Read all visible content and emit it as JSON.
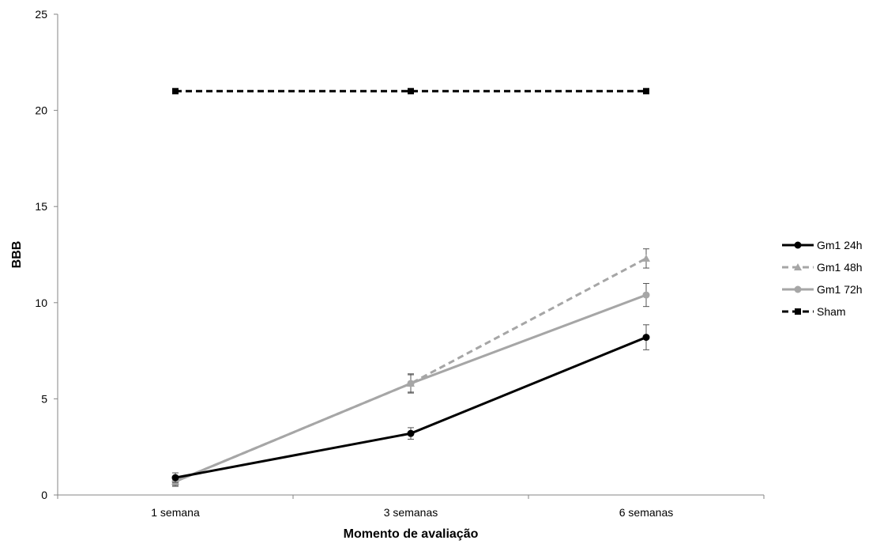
{
  "chart_data": {
    "type": "line",
    "title": "",
    "xlabel": "Momento de avaliação",
    "ylabel": "BBB",
    "categories": [
      "1 semana",
      "3 semanas",
      "6 semanas"
    ],
    "ylim": [
      0,
      25
    ],
    "yticks": [
      0,
      5,
      10,
      15,
      20,
      25
    ],
    "grid": false,
    "legend_position": "right",
    "series": [
      {
        "name": "Gm1 24h",
        "values": [
          0.9,
          3.2,
          8.2
        ],
        "error": [
          0.25,
          0.3,
          0.65
        ],
        "color": "#000000",
        "dashed": false,
        "marker": "circle"
      },
      {
        "name": "Gm1 48h",
        "values": [
          0.7,
          5.8,
          12.3
        ],
        "error": [
          0.25,
          0.5,
          0.5
        ],
        "color": "#a6a6a6",
        "dashed": true,
        "marker": "triangle"
      },
      {
        "name": "Gm1 72h",
        "values": [
          0.7,
          5.8,
          10.4
        ],
        "error": [
          0.2,
          0.45,
          0.6
        ],
        "color": "#a6a6a6",
        "dashed": false,
        "marker": "circle"
      },
      {
        "name": "Sham",
        "values": [
          21,
          21,
          21
        ],
        "error": [
          0,
          0,
          0
        ],
        "color": "#000000",
        "dashed": true,
        "marker": "square"
      }
    ]
  }
}
